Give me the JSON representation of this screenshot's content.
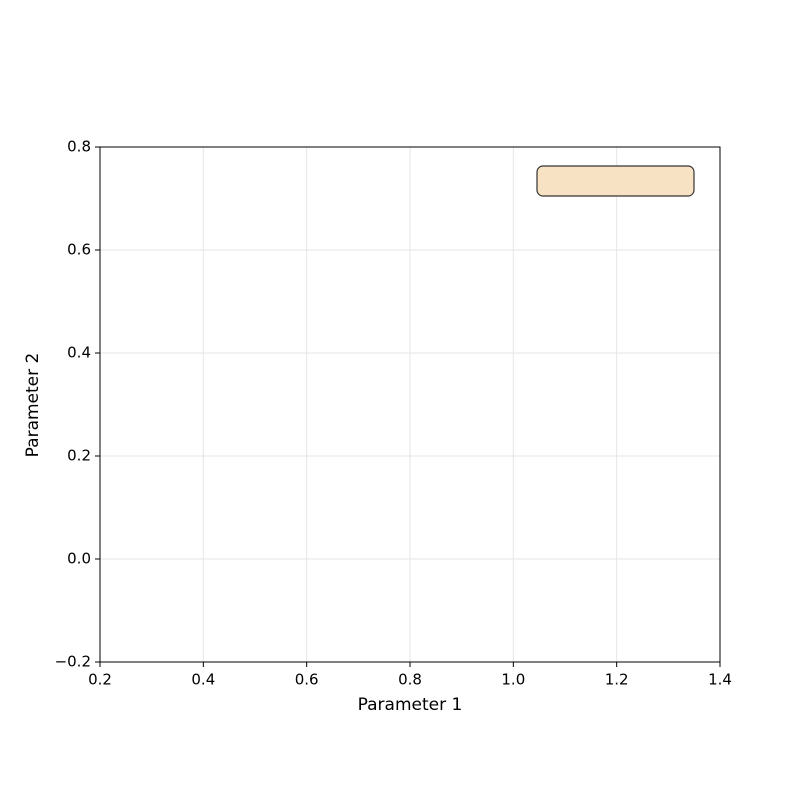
{
  "chart_data": {
    "type": "scatter",
    "x_label": "Parameter 1",
    "y_label": "Parameter 2",
    "xlim": [
      0.2,
      1.4
    ],
    "ylim": [
      -0.2,
      0.8
    ],
    "xticks": [
      0.2,
      0.4,
      0.6,
      0.8,
      {
        "value": 1,
        "label": "1.0"
      },
      1.2,
      1.4
    ],
    "yticks": [
      {
        "value": -0.2,
        "label": "−0.2"
      },
      {
        "value": 0,
        "label": "0.0"
      },
      0.2,
      0.4,
      0.6,
      0.8
    ],
    "grid": true
  }
}
